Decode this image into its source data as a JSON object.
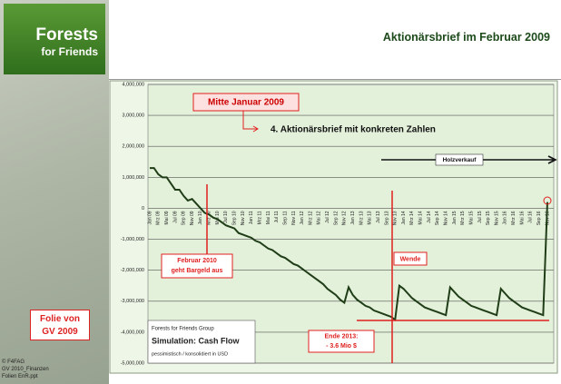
{
  "slide": {
    "title": "Aktionärsbrief im Februar 2009",
    "logo": [
      "Forests",
      "for Friends"
    ],
    "note": [
      "Folie von",
      "GV 2009"
    ],
    "footer": [
      "© F4FAG",
      "GV 2010_Finanzen",
      "Folien EnR.ppt"
    ]
  },
  "chart_data": {
    "type": "line",
    "annotations": {
      "mid_january": "Mitte Januar 2009",
      "letter": "4. Aktionärsbrief mit konkreten Zahlen",
      "timber": "Holzverkauf",
      "cash_out": [
        "Februar 2010",
        "geht Bargeld aus"
      ],
      "turn": "Wende",
      "end_2013": [
        "Ende 2013:",
        "- 3.6 Mio $"
      ]
    },
    "legend_box": [
      "Forests for Friends Group",
      "Simulation: Cash Flow",
      "pessimistisch / konsolidiert in USD"
    ],
    "categories": [
      "Jan 09",
      null,
      "Mrz 09",
      null,
      "Mai 09",
      null,
      "Jul 09",
      null,
      "Sep 09",
      null,
      "Nov 09",
      null,
      "Jan 10",
      null,
      "Mrz 10",
      null,
      "Mai 10",
      null,
      "Jul 10",
      null,
      "Sep 10",
      null,
      "Nov 10",
      null,
      "Jan 11",
      null,
      "Mrz 11",
      null,
      "Mai 11",
      null,
      "Jul 11",
      null,
      "Sep 11",
      null,
      "Nov 11",
      null,
      "Jan 12",
      null,
      "Mrz 12",
      null,
      "Mai 12",
      null,
      "Jul 12",
      null,
      "Sep 12",
      null,
      "Nov 12",
      null,
      "Jan 13",
      null,
      "Mrz 13",
      null,
      "Mai 13",
      null,
      "Jul 13",
      null,
      "Sep 13",
      null,
      "Nov 13",
      null,
      "Jan 14",
      null,
      "Mrz 14",
      null,
      "Mai 14",
      null,
      "Jul 14",
      null,
      "Sep 14",
      null,
      "Nov 14",
      null,
      "Jan 15",
      null,
      "Mrz 15",
      null,
      "Mai 15",
      null,
      "Jul 15",
      null,
      "Sep 15",
      null,
      "Nov 15",
      null,
      "Jan 16",
      null,
      "Mrz 16",
      null,
      "Mai 16",
      null,
      "Jul 16",
      null,
      "Sep 16",
      null,
      "Nov 16"
    ],
    "series": [
      {
        "color": "#1f3d16",
        "values": [
          1300000,
          1300000,
          1100000,
          1000000,
          1000000,
          800000,
          600000,
          600000,
          400000,
          250000,
          300000,
          150000,
          0,
          -150000,
          -200000,
          -300000,
          -350000,
          -450000,
          -550000,
          -600000,
          -650000,
          -800000,
          -850000,
          -900000,
          -950000,
          -1050000,
          -1100000,
          -1200000,
          -1300000,
          -1350000,
          -1450000,
          -1550000,
          -1600000,
          -1700000,
          -1800000,
          -1850000,
          -1950000,
          -2050000,
          -2150000,
          -2250000,
          -2350000,
          -2450000,
          -2600000,
          -2700000,
          -2800000,
          -2950000,
          -3050000,
          -2550000,
          -2800000,
          -2950000,
          -3050000,
          -3150000,
          -3200000,
          -3300000,
          -3350000,
          -3400000,
          -3450000,
          -3500000,
          -3600000,
          -2500000,
          -2600000,
          -2750000,
          -2900000,
          -3000000,
          -3100000,
          -3200000,
          -3250000,
          -3300000,
          -3350000,
          -3400000,
          -3450000,
          -2550000,
          -2700000,
          -2850000,
          -2950000,
          -3050000,
          -3150000,
          -3200000,
          -3250000,
          -3300000,
          -3350000,
          -3400000,
          -3450000,
          -2600000,
          -2750000,
          -2900000,
          -3000000,
          -3100000,
          -3200000,
          -3250000,
          -3300000,
          -3350000,
          -3400000,
          -3450000,
          200000
        ]
      }
    ],
    "ylim": [
      -5000000,
      4000000
    ],
    "yticks": [
      {
        "value": -5000000,
        "label": "-5,000,000"
      },
      {
        "value": -4000000,
        "label": "-4,000,000"
      },
      {
        "value": -3000000,
        "label": "-3,000,000"
      },
      {
        "value": -2000000,
        "label": "-2,000,000"
      },
      {
        "value": -1000000,
        "label": "-1,000,000"
      },
      0,
      {
        "value": 1000000,
        "label": "1,000,000"
      },
      {
        "value": 2000000,
        "label": "2,000,000"
      },
      {
        "value": 3000000,
        "label": "3,000,000"
      },
      {
        "value": 4000000,
        "label": "4,000,000"
      }
    ],
    "grid": true
  }
}
